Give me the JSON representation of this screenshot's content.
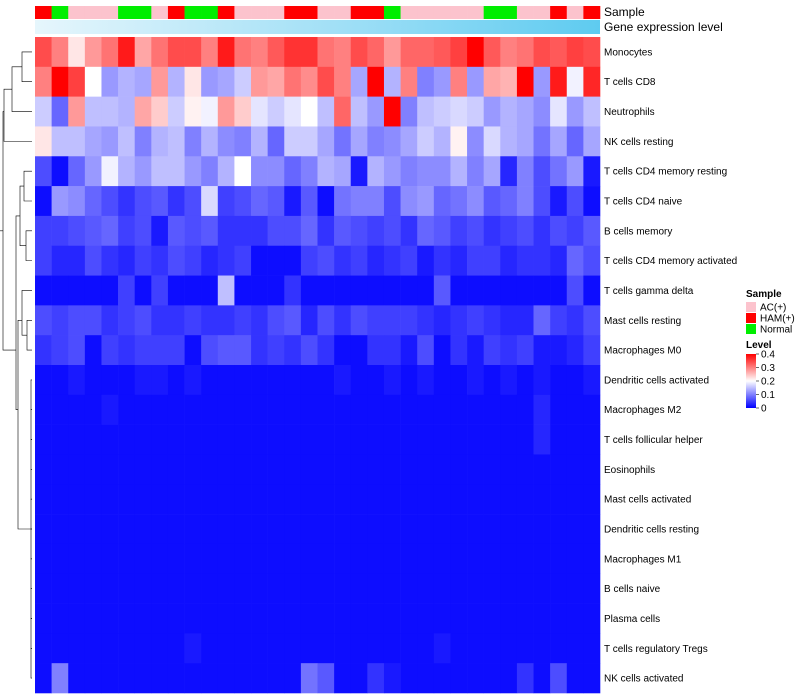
{
  "chart_data": {
    "type": "heatmap",
    "title": "",
    "annotation_rows": [
      "Sample",
      "Gene expression level"
    ],
    "rows": [
      "Monocytes",
      "T cells CD8",
      "Neutrophils",
      "NK cells resting",
      "T cells CD4 memory resting",
      "T cells CD4 naive",
      "B cells memory",
      "T cells CD4 memory activated",
      "T cells gamma delta",
      "Mast cells resting",
      "Macrophages M0",
      "Dendritic cells activated",
      "Macrophages M2",
      "T cells follicular helper",
      "Eosinophils",
      "Mast cells activated",
      "Dendritic cells resting",
      "Macrophages M1",
      "B cells naive",
      "Plasma cells",
      "T cells regulatory  Tregs",
      "NK cells activated"
    ],
    "columns": 34,
    "sample_groups": [
      "HAM(+)",
      "Normal",
      "AC(+)",
      "AC(+)",
      "AC(+)",
      "Normal",
      "Normal",
      "AC(+)",
      "HAM(+)",
      "Normal",
      "Normal",
      "HAM(+)",
      "AC(+)",
      "AC(+)",
      "AC(+)",
      "HAM(+)",
      "HAM(+)",
      "AC(+)",
      "AC(+)",
      "HAM(+)",
      "HAM(+)",
      "Normal",
      "AC(+)",
      "AC(+)",
      "AC(+)",
      "AC(+)",
      "AC(+)",
      "Normal",
      "Normal",
      "AC(+)",
      "AC(+)",
      "HAM(+)",
      "AC(+)",
      "HAM(+)"
    ],
    "values": [
      [
        0.34,
        0.3,
        0.22,
        0.28,
        0.31,
        0.38,
        0.27,
        0.31,
        0.34,
        0.34,
        0.3,
        0.38,
        0.31,
        0.3,
        0.33,
        0.36,
        0.36,
        0.31,
        0.3,
        0.34,
        0.32,
        0.28,
        0.32,
        0.32,
        0.33,
        0.35,
        0.4,
        0.33,
        0.3,
        0.31,
        0.34,
        0.33,
        0.35,
        0.34
      ],
      [
        0.3,
        0.4,
        0.35,
        0.2,
        0.12,
        0.14,
        0.13,
        0.28,
        0.14,
        0.22,
        0.12,
        0.13,
        0.16,
        0.28,
        0.27,
        0.31,
        0.29,
        0.34,
        0.3,
        0.13,
        0.4,
        0.14,
        0.3,
        0.1,
        0.12,
        0.3,
        0.12,
        0.27,
        0.26,
        0.4,
        0.12,
        0.38,
        0.19,
        0.37
      ],
      [
        0.16,
        0.08,
        0.28,
        0.15,
        0.15,
        0.14,
        0.27,
        0.24,
        0.16,
        0.21,
        0.19,
        0.28,
        0.24,
        0.18,
        0.16,
        0.18,
        0.2,
        0.15,
        0.32,
        0.15,
        0.12,
        0.4,
        0.1,
        0.15,
        0.16,
        0.17,
        0.16,
        0.12,
        0.14,
        0.13,
        0.11,
        0.18,
        0.12,
        0.15
      ],
      [
        0.22,
        0.15,
        0.15,
        0.13,
        0.12,
        0.15,
        0.1,
        0.14,
        0.15,
        0.1,
        0.14,
        0.11,
        0.1,
        0.14,
        0.08,
        0.16,
        0.16,
        0.13,
        0.09,
        0.13,
        0.1,
        0.11,
        0.13,
        0.16,
        0.14,
        0.21,
        0.11,
        0.17,
        0.14,
        0.13,
        0.09,
        0.13,
        0.08,
        0.13
      ],
      [
        0.06,
        0.01,
        0.08,
        0.12,
        0.19,
        0.14,
        0.12,
        0.15,
        0.15,
        0.12,
        0.1,
        0.14,
        0.2,
        0.11,
        0.11,
        0.08,
        0.1,
        0.14,
        0.13,
        0.02,
        0.14,
        0.12,
        0.1,
        0.11,
        0.11,
        0.14,
        0.1,
        0.13,
        0.03,
        0.1,
        0.06,
        0.09,
        0.12,
        0.02
      ],
      [
        0.01,
        0.12,
        0.11,
        0.08,
        0.06,
        0.04,
        0.06,
        0.07,
        0.04,
        0.06,
        0.17,
        0.05,
        0.06,
        0.08,
        0.07,
        0.02,
        0.07,
        0.01,
        0.09,
        0.1,
        0.1,
        0.06,
        0.11,
        0.12,
        0.08,
        0.09,
        0.11,
        0.07,
        0.08,
        0.1,
        0.06,
        0.02,
        0.06,
        0.01
      ],
      [
        0.05,
        0.05,
        0.06,
        0.07,
        0.08,
        0.05,
        0.06,
        0.02,
        0.07,
        0.06,
        0.07,
        0.04,
        0.04,
        0.04,
        0.06,
        0.06,
        0.08,
        0.04,
        0.07,
        0.06,
        0.05,
        0.06,
        0.04,
        0.08,
        0.07,
        0.05,
        0.06,
        0.04,
        0.05,
        0.06,
        0.04,
        0.06,
        0.05,
        0.07
      ],
      [
        0.05,
        0.03,
        0.03,
        0.06,
        0.04,
        0.03,
        0.05,
        0.04,
        0.06,
        0.05,
        0.03,
        0.04,
        0.05,
        0.01,
        0.01,
        0.01,
        0.05,
        0.06,
        0.04,
        0.05,
        0.03,
        0.04,
        0.05,
        0.02,
        0.04,
        0.03,
        0.05,
        0.05,
        0.03,
        0.04,
        0.04,
        0.03,
        0.08,
        0.06
      ],
      [
        0.01,
        0.01,
        0.01,
        0.01,
        0.01,
        0.05,
        0.01,
        0.05,
        0.01,
        0.01,
        0.01,
        0.15,
        0.01,
        0.01,
        0.01,
        0.04,
        0.01,
        0.01,
        0.01,
        0.01,
        0.01,
        0.01,
        0.01,
        0.01,
        0.07,
        0.01,
        0.01,
        0.01,
        0.01,
        0.01,
        0.01,
        0.01,
        0.06,
        0.01
      ],
      [
        0.06,
        0.05,
        0.06,
        0.06,
        0.04,
        0.05,
        0.06,
        0.04,
        0.04,
        0.05,
        0.04,
        0.04,
        0.05,
        0.04,
        0.06,
        0.07,
        0.03,
        0.06,
        0.04,
        0.06,
        0.05,
        0.05,
        0.05,
        0.04,
        0.03,
        0.04,
        0.05,
        0.04,
        0.03,
        0.03,
        0.08,
        0.05,
        0.04,
        0.06
      ],
      [
        0.04,
        0.05,
        0.06,
        0.01,
        0.05,
        0.04,
        0.05,
        0.05,
        0.05,
        0.01,
        0.06,
        0.07,
        0.07,
        0.04,
        0.05,
        0.04,
        0.06,
        0.04,
        0.01,
        0.01,
        0.04,
        0.04,
        0.02,
        0.06,
        0.01,
        0.04,
        0.02,
        0.05,
        0.04,
        0.05,
        0.02,
        0.02,
        0.03,
        0.05
      ],
      [
        0.01,
        0.01,
        0.02,
        0.01,
        0.01,
        0.01,
        0.02,
        0.02,
        0.01,
        0.02,
        0.01,
        0.01,
        0.01,
        0.01,
        0.01,
        0.01,
        0.01,
        0.01,
        0.02,
        0.01,
        0.01,
        0.02,
        0.01,
        0.02,
        0.01,
        0.01,
        0.02,
        0.01,
        0.02,
        0.01,
        0.02,
        0.01,
        0.01,
        0.02
      ],
      [
        0.01,
        0.01,
        0.01,
        0.01,
        0.02,
        0.01,
        0.01,
        0.01,
        0.01,
        0.01,
        0.01,
        0.01,
        0.01,
        0.01,
        0.01,
        0.01,
        0.01,
        0.01,
        0.01,
        0.01,
        0.01,
        0.01,
        0.01,
        0.01,
        0.01,
        0.01,
        0.01,
        0.01,
        0.01,
        0.01,
        0.03,
        0.01,
        0.01,
        0.01
      ],
      [
        0.01,
        0.01,
        0.01,
        0.01,
        0.01,
        0.01,
        0.01,
        0.01,
        0.01,
        0.01,
        0.01,
        0.01,
        0.01,
        0.01,
        0.01,
        0.01,
        0.01,
        0.01,
        0.01,
        0.01,
        0.01,
        0.01,
        0.01,
        0.01,
        0.01,
        0.01,
        0.01,
        0.01,
        0.01,
        0.01,
        0.03,
        0.01,
        0.01,
        0.01
      ],
      [
        0.01,
        0.01,
        0.01,
        0.01,
        0.01,
        0.01,
        0.01,
        0.01,
        0.01,
        0.01,
        0.01,
        0.01,
        0.01,
        0.01,
        0.01,
        0.01,
        0.01,
        0.01,
        0.01,
        0.01,
        0.01,
        0.01,
        0.01,
        0.01,
        0.01,
        0.01,
        0.01,
        0.01,
        0.01,
        0.01,
        0.01,
        0.01,
        0.01,
        0.01
      ],
      [
        0.01,
        0.01,
        0.01,
        0.01,
        0.01,
        0.01,
        0.01,
        0.01,
        0.01,
        0.01,
        0.01,
        0.01,
        0.01,
        0.01,
        0.01,
        0.01,
        0.01,
        0.01,
        0.01,
        0.01,
        0.01,
        0.01,
        0.01,
        0.01,
        0.01,
        0.01,
        0.01,
        0.01,
        0.01,
        0.01,
        0.01,
        0.01,
        0.01,
        0.01
      ],
      [
        0.01,
        0.01,
        0.01,
        0.01,
        0.01,
        0.01,
        0.01,
        0.01,
        0.01,
        0.01,
        0.01,
        0.01,
        0.01,
        0.01,
        0.01,
        0.01,
        0.01,
        0.01,
        0.01,
        0.01,
        0.01,
        0.01,
        0.01,
        0.01,
        0.01,
        0.01,
        0.01,
        0.01,
        0.01,
        0.01,
        0.01,
        0.01,
        0.01,
        0.01
      ],
      [
        0.01,
        0.01,
        0.01,
        0.01,
        0.01,
        0.01,
        0.01,
        0.01,
        0.01,
        0.01,
        0.01,
        0.01,
        0.01,
        0.01,
        0.01,
        0.01,
        0.01,
        0.01,
        0.01,
        0.01,
        0.01,
        0.01,
        0.01,
        0.01,
        0.01,
        0.01,
        0.01,
        0.01,
        0.01,
        0.01,
        0.01,
        0.01,
        0.01,
        0.01
      ],
      [
        0.01,
        0.01,
        0.01,
        0.01,
        0.01,
        0.01,
        0.01,
        0.01,
        0.01,
        0.01,
        0.01,
        0.01,
        0.01,
        0.01,
        0.01,
        0.01,
        0.01,
        0.01,
        0.01,
        0.01,
        0.01,
        0.01,
        0.01,
        0.01,
        0.01,
        0.01,
        0.01,
        0.01,
        0.01,
        0.01,
        0.01,
        0.01,
        0.01,
        0.01
      ],
      [
        0.01,
        0.01,
        0.01,
        0.01,
        0.01,
        0.01,
        0.01,
        0.01,
        0.01,
        0.01,
        0.01,
        0.01,
        0.01,
        0.01,
        0.01,
        0.01,
        0.01,
        0.01,
        0.01,
        0.01,
        0.01,
        0.01,
        0.01,
        0.01,
        0.01,
        0.01,
        0.01,
        0.01,
        0.01,
        0.01,
        0.01,
        0.01,
        0.01,
        0.01
      ],
      [
        0.01,
        0.01,
        0.01,
        0.01,
        0.01,
        0.01,
        0.01,
        0.01,
        0.01,
        0.02,
        0.01,
        0.01,
        0.01,
        0.01,
        0.01,
        0.01,
        0.01,
        0.01,
        0.01,
        0.01,
        0.01,
        0.01,
        0.01,
        0.01,
        0.02,
        0.01,
        0.01,
        0.01,
        0.01,
        0.01,
        0.01,
        0.01,
        0.01,
        0.01
      ],
      [
        0.01,
        0.1,
        0.01,
        0.01,
        0.01,
        0.01,
        0.01,
        0.01,
        0.01,
        0.01,
        0.01,
        0.01,
        0.01,
        0.01,
        0.01,
        0.01,
        0.09,
        0.07,
        0.01,
        0.01,
        0.04,
        0.02,
        0.01,
        0.01,
        0.01,
        0.01,
        0.01,
        0.01,
        0.01,
        0.04,
        0.01,
        0.06,
        0.01,
        0.01
      ]
    ],
    "color_scale": {
      "min": 0,
      "mid": 0.2,
      "max": 0.4,
      "low_color": "#0000ff",
      "mid_color": "#ffffff",
      "high_color": "#ff0000"
    },
    "expression_bar_color": "#5ecbf0",
    "legend": {
      "sample_title": "Sample",
      "sample_entries": [
        {
          "label": "AC(+)",
          "color": "#fcc3cd"
        },
        {
          "label": "HAM(+)",
          "color": "#ff0000"
        },
        {
          "label": "Normal",
          "color": "#00ee00"
        }
      ],
      "level_title": "Level",
      "level_ticks": [
        0.4,
        0.3,
        0.2,
        0.1,
        0
      ]
    }
  }
}
